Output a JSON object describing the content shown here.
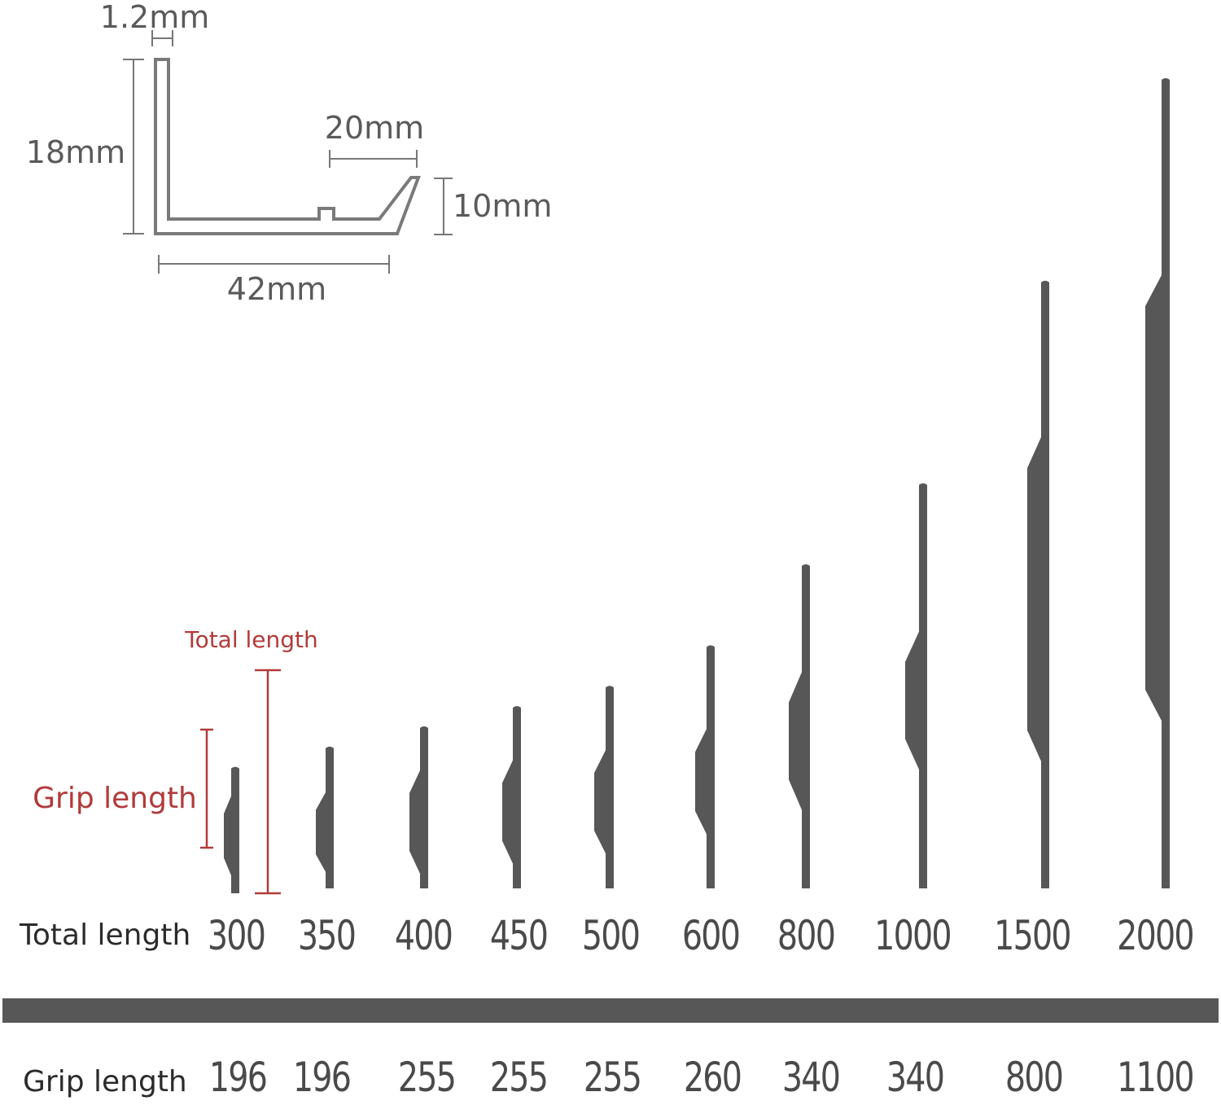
{
  "profile": {
    "thickness": "1.2mm",
    "height": "18mm",
    "lip_width": "20mm",
    "lip_height": "10mm",
    "base_width": "42mm"
  },
  "legend": {
    "total_length": "Total length",
    "grip_length": "Grip length"
  },
  "rows": {
    "total_label": "Total length",
    "grip_label": "Grip length"
  },
  "colors": {
    "handle": "#575757",
    "dimension": "#666666",
    "accent": "#b23a3a"
  },
  "handles": [
    {
      "total": "300",
      "grip": "196"
    },
    {
      "total": "350",
      "grip": "196"
    },
    {
      "total": "400",
      "grip": "255"
    },
    {
      "total": "450",
      "grip": "255"
    },
    {
      "total": "500",
      "grip": "255"
    },
    {
      "total": "600",
      "grip": "260"
    },
    {
      "total": "800",
      "grip": "340"
    },
    {
      "total": "1000",
      "grip": "340"
    },
    {
      "total": "1500",
      "grip": "800"
    },
    {
      "total": "2000",
      "grip": "1100"
    }
  ]
}
